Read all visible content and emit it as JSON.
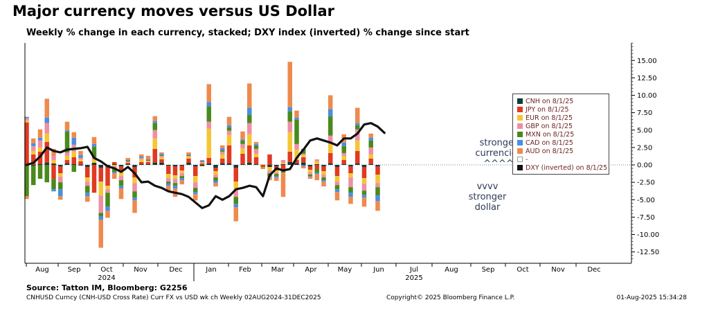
{
  "header": {
    "title": "Major currency moves versus US Dollar",
    "subtitle": "Weekly % change in each currency, stacked; DXY index (inverted) % change since start"
  },
  "annotations": {
    "up": [
      "stronger",
      "currencies",
      "^^^^"
    ],
    "down": [
      "vvvv",
      "stronger",
      "dollar"
    ]
  },
  "footer": {
    "source": "Source: Tatton IM, Bloomberg: G2256",
    "left": "CNHUSD Curncy (CNH-USD Cross Rate) Curr FX vs USD wk ch  Weekly 02AUG2024-31DEC2025",
    "middle": "Copyright© 2025 Bloomberg Finance L.P.",
    "right": "01-Aug-2025 15:34:28"
  },
  "legend": [
    {
      "label": "CNH on 8/1/25",
      "color": "#0b3d3a"
    },
    {
      "label": "JPY on 8/1/25",
      "color": "#e03a22"
    },
    {
      "label": "EUR on 8/1/25",
      "color": "#f5c634"
    },
    {
      "label": "GBP on 8/1/25",
      "color": "#ee8fa4"
    },
    {
      "label": "MXN on 8/1/25",
      "color": "#4a8a1c"
    },
    {
      "label": "CAD on 8/1/25",
      "color": "#4a8ee0"
    },
    {
      "label": "AUD on 8/1/25",
      "color": "#ee8a4e"
    },
    {
      "label": "-",
      "color": "#ffffff"
    },
    {
      "label": "DXY (inverted) on 8/1/25",
      "color": "#111111"
    }
  ],
  "chart_data": {
    "type": "bar",
    "stacked": true,
    "ylim": [
      -13.5,
      17.5
    ],
    "yticks": [
      "15.00",
      "12.50",
      "10.00",
      "7.50",
      "5.00",
      "2.50",
      "0.00",
      "-2.50",
      "-5.00",
      "-7.50",
      "-10.00",
      "-12.50"
    ],
    "ytick_values": [
      15,
      12.5,
      10,
      7.5,
      5,
      2.5,
      0,
      -2.5,
      -5,
      -7.5,
      -10,
      -12.5
    ],
    "month_labels": [
      "Aug",
      "Sep",
      "Oct",
      "Nov",
      "Dec",
      "Jan",
      "Feb",
      "Mar",
      "Apr",
      "May",
      "Jun",
      "Jul",
      "Aug",
      "Sep",
      "Oct",
      "Nov",
      "Dec"
    ],
    "year_labels": [
      {
        "label": "2024",
        "month_index": 2
      },
      {
        "label": "2025",
        "month_index": 11
      }
    ],
    "week_count": 53,
    "series_order": [
      "CNH",
      "JPY",
      "EUR",
      "GBP",
      "MXN",
      "CAD",
      "AUD"
    ],
    "weekly_changes": [
      [
        0.1,
        6.0,
        0.3,
        0.3,
        -4.5,
        0.2,
        -0.4
      ],
      [
        -0.1,
        1.5,
        0.5,
        0.7,
        -2.8,
        0.4,
        0.7
      ],
      [
        0.1,
        1.8,
        0.6,
        1.0,
        -2.0,
        0.4,
        1.2
      ],
      [
        0.3,
        3.0,
        1.2,
        1.5,
        -2.5,
        0.8,
        2.7
      ],
      [
        0.2,
        -2.0,
        0.5,
        0.6,
        -1.5,
        -0.3,
        1.0
      ],
      [
        -0.2,
        -1.0,
        -0.5,
        -0.8,
        -1.0,
        -1.0,
        -0.5
      ],
      [
        0.2,
        0.5,
        0.6,
        0.5,
        3.0,
        0.2,
        1.2
      ],
      [
        0.1,
        1.0,
        0.8,
        1.0,
        -1.0,
        1.0,
        0.8
      ],
      [
        -0.1,
        0.5,
        0.3,
        0.2,
        0.0,
        0.4,
        0.6
      ],
      [
        -0.3,
        -1.5,
        -0.6,
        -0.6,
        -1.0,
        -0.5,
        -0.8
      ],
      [
        0.3,
        -4.0,
        0.5,
        0.3,
        1.5,
        0.4,
        1.0
      ],
      [
        -0.4,
        -2.0,
        -2.0,
        -2.5,
        -0.5,
        -0.5,
        -4.0
      ],
      [
        -0.2,
        -2.8,
        -0.5,
        -0.5,
        -2.0,
        -0.6,
        -1.0
      ],
      [
        0.1,
        0.3,
        -0.2,
        -0.2,
        -0.6,
        -0.2,
        -0.8
      ],
      [
        -0.2,
        -0.6,
        -0.8,
        -0.6,
        -0.8,
        -0.4,
        -1.5
      ],
      [
        0.1,
        0.2,
        0.1,
        0.1,
        0.1,
        0.1,
        0.3
      ],
      [
        -0.3,
        -1.5,
        -0.8,
        -1.2,
        -0.9,
        -0.4,
        -1.8
      ],
      [
        0.1,
        0.3,
        0.4,
        0.2,
        0.0,
        0.2,
        0.3
      ],
      [
        0.1,
        0.3,
        0.1,
        0.1,
        0.1,
        0.1,
        0.5
      ],
      [
        0.3,
        2.0,
        1.5,
        1.2,
        1.0,
        0.3,
        0.7
      ],
      [
        0.3,
        0.5,
        0.3,
        0.2,
        0.1,
        0.2,
        0.2
      ],
      [
        -0.1,
        -1.2,
        -0.6,
        -0.5,
        -0.3,
        -0.3,
        -0.8
      ],
      [
        -0.2,
        -1.3,
        -0.5,
        -0.6,
        -0.4,
        -0.4,
        -1.2
      ],
      [
        -0.1,
        -0.7,
        -0.4,
        -0.4,
        -0.3,
        -0.3,
        -0.6
      ],
      [
        0.3,
        0.6,
        0.3,
        0.1,
        0.1,
        0.1,
        0.3
      ],
      [
        -0.2,
        -1.4,
        -0.9,
        -0.8,
        -0.6,
        -0.3,
        -0.9
      ],
      [
        -0.1,
        0.2,
        0.1,
        0.1,
        -0.1,
        0.2,
        0.1
      ],
      [
        0.2,
        0.8,
        4.2,
        1.0,
        2.2,
        0.6,
        2.6
      ],
      [
        -0.4,
        -0.5,
        -0.5,
        -0.4,
        -0.5,
        -0.3,
        -0.5
      ],
      [
        0.2,
        0.7,
        0.6,
        0.4,
        0.2,
        0.3,
        0.4
      ],
      [
        0.2,
        2.6,
        1.5,
        0.6,
        0.5,
        0.3,
        1.2
      ],
      [
        -0.4,
        -2.0,
        -1.2,
        -1.0,
        -1.0,
        -0.5,
        -2.0
      ],
      [
        0.1,
        1.5,
        0.8,
        0.6,
        0.5,
        0.2,
        1.1
      ],
      [
        0.3,
        2.5,
        1.6,
        1.6,
        1.2,
        1.0,
        3.5
      ],
      [
        0.1,
        1.0,
        0.5,
        0.7,
        0.5,
        0.2,
        0.3
      ],
      [
        0.0,
        -0.2,
        0.1,
        0.0,
        -0.1,
        0.0,
        -0.3
      ],
      [
        -0.3,
        1.5,
        -0.5,
        -0.4,
        -0.4,
        -0.2,
        -0.4
      ],
      [
        -0.2,
        -0.6,
        -0.3,
        -0.2,
        -0.3,
        -0.2,
        -0.5
      ],
      [
        0.1,
        -0.6,
        0.2,
        0.4,
        -0.5,
        0.0,
        -3.5
      ],
      [
        0.4,
        1.5,
        2.8,
        1.5,
        1.5,
        0.6,
        6.5
      ],
      [
        0.2,
        0.5,
        1.5,
        0.8,
        3.5,
        0.3,
        1.0
      ],
      [
        0.3,
        0.8,
        0.3,
        0.2,
        0.7,
        -0.2,
        -0.3
      ],
      [
        -0.2,
        -0.5,
        -0.4,
        -0.3,
        -0.2,
        -0.1,
        -0.3
      ],
      [
        0.1,
        -0.6,
        0.4,
        0.3,
        -0.5,
        -0.2,
        -0.9
      ],
      [
        -0.2,
        -0.7,
        -0.5,
        -0.4,
        -0.4,
        -0.2,
        -0.7
      ],
      [
        0.2,
        1.5,
        1.3,
        1.2,
        2.8,
        1.0,
        2.0
      ],
      [
        -0.3,
        -1.3,
        -0.8,
        -0.5,
        -0.6,
        -0.4,
        -1.2
      ],
      [
        0.1,
        0.6,
        0.6,
        0.4,
        1.0,
        0.5,
        1.2
      ],
      [
        -0.2,
        -1.0,
        -0.6,
        -1.4,
        -0.8,
        -0.6,
        -1.0
      ],
      [
        0.2,
        1.8,
        1.5,
        1.6,
        0.6,
        0.3,
        2.2
      ],
      [
        -0.3,
        -1.6,
        -0.8,
        -1.0,
        -0.6,
        -0.4,
        -1.3
      ],
      [
        0.1,
        0.8,
        0.6,
        1.0,
        1.0,
        0.4,
        0.6
      ],
      [
        -0.2,
        -1.2,
        -1.2,
        -0.6,
        -1.2,
        -0.8,
        -1.4
      ]
    ],
    "dxy_inverted": [
      0.0,
      0.3,
      1.2,
      2.5,
      2.0,
      1.8,
      2.2,
      2.3,
      2.4,
      2.6,
      1.0,
      0.5,
      -0.2,
      -0.5,
      -1.0,
      -0.3,
      -1.2,
      -2.5,
      -2.4,
      -3.0,
      -3.3,
      -3.8,
      -4.0,
      -4.2,
      -4.6,
      -5.4,
      -6.2,
      -5.8,
      -4.5,
      -5.0,
      -4.5,
      -3.5,
      -3.3,
      -3.0,
      -3.2,
      -4.5,
      -1.5,
      -0.5,
      -0.8,
      -0.6,
      1.0,
      2.2,
      3.5,
      3.8,
      3.5,
      3.2,
      2.8,
      3.8,
      3.8,
      4.5,
      5.8,
      6.0,
      5.5,
      4.6
    ]
  }
}
